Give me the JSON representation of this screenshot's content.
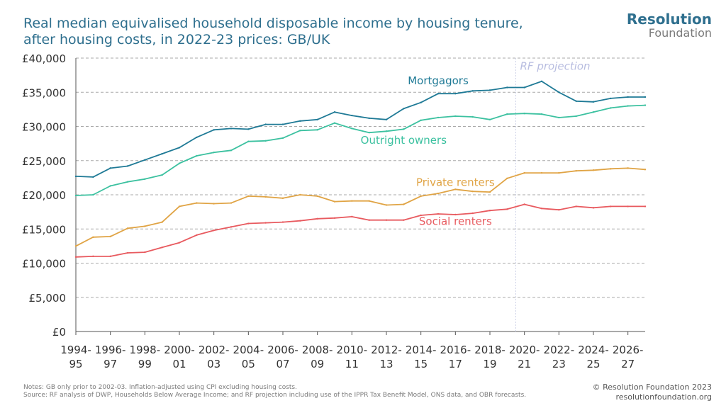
{
  "header": {
    "title_line1": "Real median equivalised household disposable income by housing tenure,",
    "title_line2": "after housing costs, in 2022-23 prices: GB/UK"
  },
  "logo": {
    "main": "Resolution",
    "sub": "Foundation"
  },
  "footer": {
    "notes": "Notes: GB only prior to 2002-03. Inflation-adjusted using CPI excluding housing costs.",
    "source": "Source: RF analysis of DWP, Households Below Average Income; and RF projection including use of the IPPR Tax Benefit Model, ONS data, and OBR forecasts.",
    "copyright": "© Resolution Foundation 2023",
    "website": "resolutionfoundation.org"
  },
  "chart_data": {
    "type": "line",
    "ylim": [
      0,
      40000
    ],
    "yticks": [
      "£0",
      "£5,000",
      "£10,000",
      "£15,000",
      "£20,000",
      "£25,000",
      "£30,000",
      "£35,000",
      "£40,000"
    ],
    "ytick_values": [
      0,
      5000,
      10000,
      15000,
      20000,
      25000,
      30000,
      35000,
      40000
    ],
    "grid": true,
    "x": [
      "1994-95",
      "1995-96",
      "1996-97",
      "1997-98",
      "1998-99",
      "1999-00",
      "2000-01",
      "2001-02",
      "2002-03",
      "2003-04",
      "2004-05",
      "2005-06",
      "2006-07",
      "2007-08",
      "2008-09",
      "2009-10",
      "2010-11",
      "2011-12",
      "2012-13",
      "2013-14",
      "2014-15",
      "2015-16",
      "2016-17",
      "2017-18",
      "2018-19",
      "2019-20",
      "2020-21",
      "2021-22",
      "2022-23",
      "2023-24",
      "2024-25",
      "2025-26",
      "2026-27",
      "2027-28"
    ],
    "xtick_labels": [
      {
        "line1": "1994-",
        "line2": "95"
      },
      {
        "line1": "1996-",
        "line2": "97"
      },
      {
        "line1": "1998-",
        "line2": "99"
      },
      {
        "line1": "2000-",
        "line2": "01"
      },
      {
        "line1": "2002-",
        "line2": "03"
      },
      {
        "line1": "2004-",
        "line2": "05"
      },
      {
        "line1": "2006-",
        "line2": "07"
      },
      {
        "line1": "2008-",
        "line2": "09"
      },
      {
        "line1": "2010-",
        "line2": "11"
      },
      {
        "line1": "2012-",
        "line2": "13"
      },
      {
        "line1": "2014-",
        "line2": "15"
      },
      {
        "line1": "2016-",
        "line2": "17"
      },
      {
        "line1": "2018-",
        "line2": "19"
      },
      {
        "line1": "2020-",
        "line2": "21"
      },
      {
        "line1": "2022-",
        "line2": "23"
      },
      {
        "line1": "2024-",
        "line2": "25"
      },
      {
        "line1": "2026-",
        "line2": "27"
      }
    ],
    "projection_label": "RF projection",
    "projection_start_index": 25.5,
    "series": [
      {
        "name": "Mortgagors",
        "color": "#1f7a96",
        "label_index": 21,
        "label_value": 36700,
        "values": [
          22700,
          22600,
          23900,
          24200,
          25100,
          26000,
          26900,
          28400,
          29500,
          29700,
          29600,
          30300,
          30300,
          30800,
          31000,
          32100,
          31600,
          31200,
          31000,
          32600,
          33500,
          34800,
          34800,
          35200,
          35300,
          35700,
          35700,
          36600,
          35000,
          33700,
          33600,
          34100,
          34300,
          34300
        ]
      },
      {
        "name": "Outright owners",
        "color": "#3cc1a0",
        "label_index": 19,
        "label_value": 28000,
        "values": [
          19900,
          20000,
          21300,
          21900,
          22300,
          22900,
          24600,
          25700,
          26200,
          26500,
          27800,
          27900,
          28300,
          29400,
          29500,
          30500,
          29700,
          29100,
          29300,
          29600,
          30900,
          31300,
          31500,
          31400,
          31000,
          31800,
          31900,
          31800,
          31300,
          31500,
          32100,
          32700,
          33000,
          33100
        ]
      },
      {
        "name": "Private renters",
        "color": "#e0a445",
        "label_index": 22,
        "label_value": 21800,
        "values": [
          12500,
          13800,
          13900,
          15100,
          15400,
          16000,
          18300,
          18800,
          18700,
          18800,
          19800,
          19700,
          19500,
          20000,
          19800,
          19000,
          19100,
          19100,
          18500,
          18600,
          19800,
          20200,
          20800,
          20500,
          20400,
          22400,
          23200,
          23200,
          23200,
          23500,
          23600,
          23800,
          23900,
          23700
        ]
      },
      {
        "name": "Social renters",
        "color": "#e85a5f",
        "label_index": 22,
        "label_value": 16100,
        "values": [
          10900,
          11000,
          11000,
          11500,
          11600,
          12300,
          13000,
          14100,
          14800,
          15300,
          15800,
          15900,
          16000,
          16200,
          16500,
          16600,
          16800,
          16300,
          16300,
          16300,
          17000,
          17200,
          17100,
          17300,
          17700,
          17900,
          18600,
          18000,
          17800,
          18300,
          18100,
          18300,
          18300,
          18300
        ]
      }
    ]
  }
}
